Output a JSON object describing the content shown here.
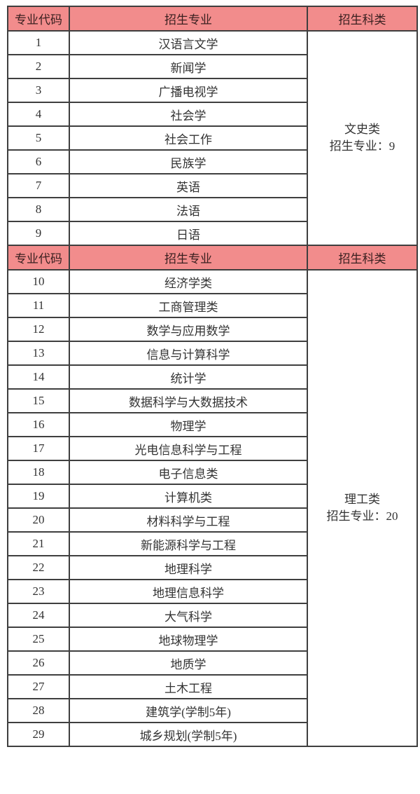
{
  "colors": {
    "header_bg": "#F28C8C",
    "header_text": "#3A2020",
    "body_text": "#333333",
    "border": "#3F3F3F",
    "page_bg": "#FFFFFF"
  },
  "table": {
    "headers": {
      "code": "专业代码",
      "major": "招生专业",
      "category": "招生科类"
    },
    "sections": [
      {
        "category_lines": [
          "文史类",
          "招生专业：9"
        ],
        "rows": [
          {
            "code": "1",
            "major": "汉语言文学"
          },
          {
            "code": "2",
            "major": "新闻学"
          },
          {
            "code": "3",
            "major": "广播电视学"
          },
          {
            "code": "4",
            "major": "社会学"
          },
          {
            "code": "5",
            "major": "社会工作"
          },
          {
            "code": "6",
            "major": "民族学"
          },
          {
            "code": "7",
            "major": "英语"
          },
          {
            "code": "8",
            "major": "法语"
          },
          {
            "code": "9",
            "major": "日语"
          }
        ]
      },
      {
        "category_lines": [
          "理工类",
          "招生专业：20"
        ],
        "rows": [
          {
            "code": "10",
            "major": "经济学类"
          },
          {
            "code": "11",
            "major": "工商管理类"
          },
          {
            "code": "12",
            "major": "数学与应用数学"
          },
          {
            "code": "13",
            "major": "信息与计算科学"
          },
          {
            "code": "14",
            "major": "统计学"
          },
          {
            "code": "15",
            "major": "数据科学与大数据技术"
          },
          {
            "code": "16",
            "major": "物理学"
          },
          {
            "code": "17",
            "major": "光电信息科学与工程"
          },
          {
            "code": "18",
            "major": "电子信息类"
          },
          {
            "code": "19",
            "major": "计算机类"
          },
          {
            "code": "20",
            "major": "材料科学与工程"
          },
          {
            "code": "21",
            "major": "新能源科学与工程"
          },
          {
            "code": "22",
            "major": "地理科学"
          },
          {
            "code": "23",
            "major": "地理信息科学"
          },
          {
            "code": "24",
            "major": "大气科学"
          },
          {
            "code": "25",
            "major": "地球物理学"
          },
          {
            "code": "26",
            "major": "地质学"
          },
          {
            "code": "27",
            "major": "土木工程"
          },
          {
            "code": "28",
            "major": "建筑学(学制5年)"
          },
          {
            "code": "29",
            "major": "城乡规划(学制5年)"
          }
        ]
      }
    ]
  }
}
